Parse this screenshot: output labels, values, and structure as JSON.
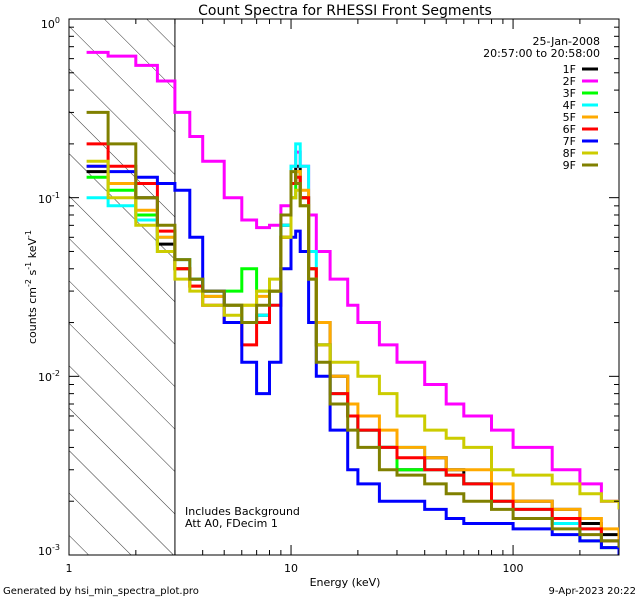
{
  "chart_data": {
    "type": "line",
    "title": "Count Spectra for RHESSI Front Segments",
    "xlabel": "Energy (keV)",
    "ylabel": "counts cm-2 s-1 keV-1",
    "xscale": "log",
    "yscale": "log",
    "xlim": [
      1,
      300
    ],
    "ylim": [
      0.001,
      1
    ],
    "x_tick_labels": [
      "1",
      "10",
      "100"
    ],
    "y_tick_labels": [
      "10-3",
      "10-2",
      "10-1",
      "10^0"
    ],
    "legend_header": [
      "25-Jan-2008",
      "20:57:00 to 20:58:00"
    ],
    "legend_position": "top-right",
    "annotations": [
      "Includes Background",
      "Att A0, FDecim 1"
    ],
    "footer_left": "Generated by hsi_min_spectra_plot.pro",
    "footer_right": "9-Apr-2023 20:22",
    "threshold_keV": 3.0,
    "series": [
      {
        "name": "1F",
        "color": "#000000",
        "x": [
          1.2,
          1.5,
          2,
          2.5,
          3,
          3.5,
          4,
          5,
          6,
          7,
          8,
          9,
          10,
          10.5,
          11,
          12,
          13,
          15,
          18,
          20,
          25,
          30,
          40,
          50,
          60,
          80,
          100,
          150,
          200,
          250,
          300
        ],
        "values": [
          0.14,
          0.12,
          0.1,
          0.055,
          0.04,
          0.035,
          0.03,
          0.025,
          0.02,
          0.022,
          0.03,
          0.07,
          0.12,
          0.15,
          0.1,
          0.04,
          0.02,
          0.01,
          0.006,
          0.005,
          0.004,
          0.003,
          0.0035,
          0.003,
          0.0025,
          0.002,
          0.002,
          0.0018,
          0.0015,
          0.0013,
          0.0012
        ]
      },
      {
        "name": "2F",
        "color": "#ff00ff",
        "x": [
          1.2,
          1.5,
          2,
          2.5,
          3,
          3.5,
          4,
          5,
          6,
          7,
          8,
          9,
          10,
          10.5,
          11,
          12,
          13,
          15,
          18,
          20,
          25,
          30,
          40,
          50,
          60,
          80,
          100,
          150,
          200,
          250,
          300
        ],
        "values": [
          0.65,
          0.62,
          0.55,
          0.45,
          0.3,
          0.22,
          0.16,
          0.1,
          0.075,
          0.068,
          0.07,
          0.09,
          0.15,
          0.18,
          0.15,
          0.08,
          0.05,
          0.035,
          0.025,
          0.02,
          0.015,
          0.012,
          0.009,
          0.007,
          0.006,
          0.005,
          0.004,
          0.003,
          0.0025,
          0.002,
          0.0018
        ]
      },
      {
        "name": "3F",
        "color": "#00ff00",
        "x": [
          1.2,
          1.5,
          2,
          2.5,
          3,
          3.5,
          4,
          5,
          6,
          7,
          8,
          9,
          10,
          10.5,
          11,
          12,
          13,
          15,
          18,
          20,
          25,
          30,
          40,
          50,
          60,
          80,
          100,
          150,
          200,
          250,
          300
        ],
        "values": [
          0.13,
          0.11,
          0.08,
          0.05,
          0.04,
          0.035,
          0.028,
          0.03,
          0.04,
          0.03,
          0.03,
          0.06,
          0.1,
          0.14,
          0.1,
          0.04,
          0.015,
          0.008,
          0.006,
          0.005,
          0.004,
          0.003,
          0.003,
          0.0028,
          0.0025,
          0.002,
          0.0018,
          0.0015,
          0.0012,
          0.0011,
          0.001
        ]
      },
      {
        "name": "4F",
        "color": "#00ffff",
        "x": [
          1.2,
          1.5,
          2,
          2.5,
          3,
          3.5,
          4,
          5,
          6,
          7,
          8,
          9,
          10,
          10.5,
          11,
          12,
          13,
          15,
          18,
          20,
          25,
          30,
          40,
          50,
          60,
          80,
          100,
          150,
          200,
          250,
          300
        ],
        "values": [
          0.1,
          0.09,
          0.075,
          0.06,
          0.045,
          0.035,
          0.03,
          0.025,
          0.02,
          0.022,
          0.025,
          0.07,
          0.15,
          0.2,
          0.15,
          0.05,
          0.015,
          0.008,
          0.006,
          0.005,
          0.004,
          0.004,
          0.003,
          0.0028,
          0.0025,
          0.002,
          0.0018,
          0.0015,
          0.0014,
          0.0012,
          0.0011
        ]
      },
      {
        "name": "5F",
        "color": "#ffaa00",
        "x": [
          1.2,
          1.5,
          2,
          2.5,
          3,
          3.5,
          4,
          5,
          6,
          7,
          8,
          9,
          10,
          10.5,
          11,
          12,
          13,
          15,
          18,
          20,
          25,
          30,
          40,
          50,
          60,
          80,
          100,
          150,
          200,
          250,
          300
        ],
        "values": [
          0.15,
          0.12,
          0.085,
          0.06,
          0.04,
          0.032,
          0.028,
          0.025,
          0.025,
          0.028,
          0.03,
          0.06,
          0.12,
          0.14,
          0.11,
          0.04,
          0.02,
          0.01,
          0.007,
          0.006,
          0.005,
          0.004,
          0.0035,
          0.003,
          0.003,
          0.0025,
          0.002,
          0.0018,
          0.0016,
          0.0014,
          0.0012
        ]
      },
      {
        "name": "6F",
        "color": "#ff0000",
        "x": [
          1.2,
          1.5,
          2,
          2.5,
          3,
          3.5,
          4,
          5,
          6,
          7,
          8,
          9,
          10,
          10.5,
          11,
          12,
          13,
          15,
          18,
          20,
          25,
          30,
          40,
          50,
          60,
          80,
          100,
          150,
          200,
          250,
          300
        ],
        "values": [
          0.2,
          0.15,
          0.12,
          0.065,
          0.04,
          0.032,
          0.025,
          0.02,
          0.015,
          0.02,
          0.025,
          0.06,
          0.12,
          0.13,
          0.1,
          0.04,
          0.015,
          0.008,
          0.006,
          0.005,
          0.004,
          0.0035,
          0.003,
          0.0028,
          0.0025,
          0.002,
          0.0018,
          0.0016,
          0.0014,
          0.0012,
          0.0011
        ]
      },
      {
        "name": "7F",
        "color": "#0000ff",
        "x": [
          1.2,
          1.5,
          2,
          2.5,
          3,
          3.5,
          4,
          5,
          6,
          7,
          8,
          9,
          10,
          10.5,
          11,
          12,
          13,
          15,
          18,
          20,
          25,
          30,
          40,
          50,
          60,
          80,
          100,
          150,
          200,
          250,
          300
        ],
        "values": [
          0.15,
          0.14,
          0.13,
          0.12,
          0.11,
          0.06,
          0.03,
          0.02,
          0.012,
          0.008,
          0.012,
          0.04,
          0.06,
          0.065,
          0.05,
          0.02,
          0.01,
          0.005,
          0.003,
          0.0025,
          0.002,
          0.002,
          0.0018,
          0.0016,
          0.0015,
          0.0015,
          0.0014,
          0.0013,
          0.0012,
          0.0011,
          0.001
        ]
      },
      {
        "name": "8F",
        "color": "#cccc00",
        "x": [
          1.2,
          1.5,
          2,
          2.5,
          3,
          3.5,
          4,
          5,
          6,
          7,
          8,
          9,
          10,
          10.5,
          11,
          12,
          13,
          15,
          18,
          20,
          25,
          30,
          40,
          50,
          60,
          80,
          100,
          150,
          200,
          250,
          300
        ],
        "values": [
          0.16,
          0.1,
          0.07,
          0.05,
          0.035,
          0.03,
          0.025,
          0.022,
          0.025,
          0.03,
          0.035,
          0.06,
          0.1,
          0.11,
          0.09,
          0.035,
          0.015,
          0.012,
          0.012,
          0.01,
          0.008,
          0.006,
          0.005,
          0.0045,
          0.004,
          0.003,
          0.0028,
          0.0025,
          0.0022,
          0.002,
          0.0018
        ]
      },
      {
        "name": "9F",
        "color": "#808000",
        "x": [
          1.2,
          1.5,
          2,
          2.5,
          3,
          3.5,
          4,
          5,
          6,
          7,
          8,
          9,
          10,
          10.5,
          11,
          12,
          13,
          15,
          18,
          20,
          25,
          30,
          40,
          50,
          60,
          80,
          100,
          150,
          200,
          250,
          300
        ],
        "values": [
          0.3,
          0.2,
          0.1,
          0.07,
          0.045,
          0.035,
          0.03,
          0.025,
          0.02,
          0.025,
          0.03,
          0.08,
          0.14,
          0.12,
          0.09,
          0.035,
          0.012,
          0.007,
          0.005,
          0.004,
          0.003,
          0.0028,
          0.0025,
          0.0022,
          0.002,
          0.0018,
          0.0016,
          0.0014,
          0.0013,
          0.0012,
          0.0011
        ]
      }
    ]
  }
}
